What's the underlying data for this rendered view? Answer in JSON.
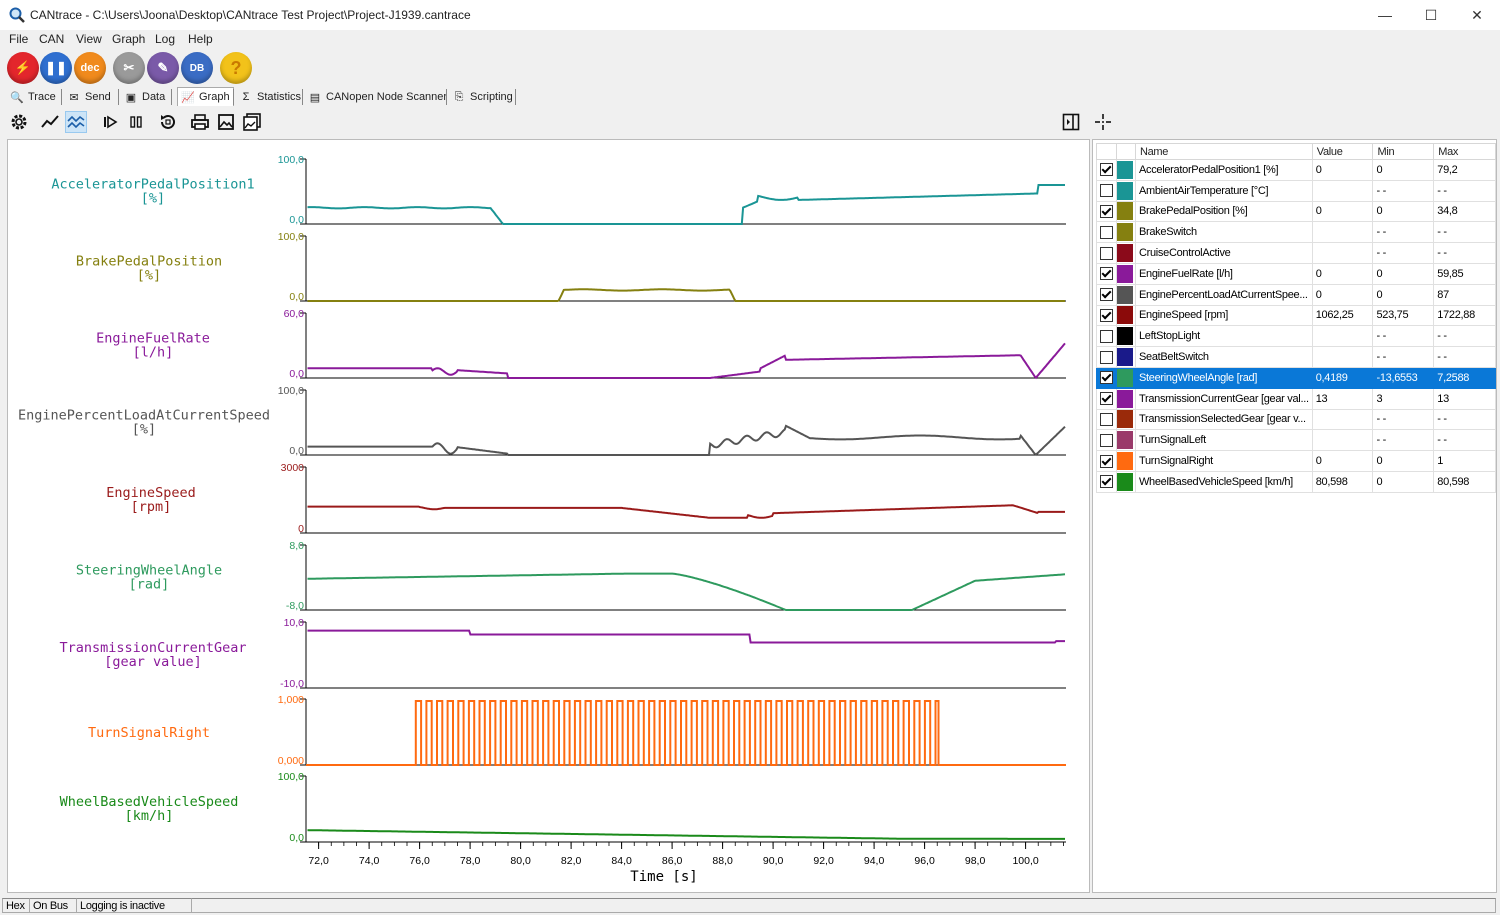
{
  "window": {
    "title": "CANtrace - C:\\Users\\Joona\\Desktop\\CANtrace Test Project\\Project-J1939.cantrace",
    "minimize": "—",
    "maximize": "☐",
    "close": "✕"
  },
  "menu": [
    "File",
    "CAN",
    "View",
    "Graph",
    "Log",
    "Help"
  ],
  "toolbar_buttons": [
    {
      "name": "connect",
      "color": "#e3262c",
      "glyph": "⚡"
    },
    {
      "name": "pause",
      "color": "#2f6fd0",
      "glyph": "❚❚"
    },
    {
      "name": "dec",
      "color": "#f08a1c",
      "glyph": "dec"
    },
    {
      "name": "tools",
      "color": "#9a9a9a",
      "glyph": "✂"
    },
    {
      "name": "edit",
      "color": "#7a5aa8",
      "glyph": "✎"
    },
    {
      "name": "database",
      "color": "#3a6cc4",
      "glyph": "DB"
    },
    {
      "name": "help",
      "color": "#f2c21a",
      "glyph": "?"
    }
  ],
  "tabs": [
    {
      "label": "Trace",
      "icon": "🔍"
    },
    {
      "label": "Send",
      "icon": "✉"
    },
    {
      "label": "Data",
      "icon": "▣"
    },
    {
      "label": "Graph",
      "icon": "📈"
    },
    {
      "label": "Statistics",
      "icon": "Σ"
    },
    {
      "label": "CANopen Node Scanner",
      "icon": "▤"
    },
    {
      "label": "Scripting",
      "icon": "⎘"
    }
  ],
  "graph": {
    "xlabel": "Time [s]",
    "x_range": [
      71.5,
      101.6
    ],
    "x_ticks": [
      "72,0",
      "74,0",
      "76,0",
      "78,0",
      "80,0",
      "82,0",
      "84,0",
      "86,0",
      "88,0",
      "90,0",
      "92,0",
      "94,0",
      "96,0",
      "98,0",
      "100,0"
    ],
    "channels": [
      {
        "label": "AcceleratorPedalPosition1",
        "unit": "[%]",
        "color": "#1a9595",
        "ymax": "100,0",
        "ymin": "0,0"
      },
      {
        "label": "BrakePedalPosition",
        "unit": "[%]",
        "color": "#858010",
        "ymax": "100,0",
        "ymin": "0,0"
      },
      {
        "label": "EngineFuelRate",
        "unit": "[l/h]",
        "color": "#8a1a9a",
        "ymax": "60,0",
        "ymin": "0,0"
      },
      {
        "label": "EnginePercentLoadAtCurrentSpeed",
        "unit": "[%]",
        "color": "#555555",
        "ymax": "100,0",
        "ymin": "0,0"
      },
      {
        "label": "EngineSpeed",
        "unit": "[rpm]",
        "color": "#9a1a1a",
        "ymax": "3000",
        "ymin": "0"
      },
      {
        "label": "SteeringWheelAngle",
        "unit": "[rad]",
        "color": "#2e9a5e",
        "ymax": "8,0",
        "ymin": "-8,0"
      },
      {
        "label": "TransmissionCurrentGear",
        "unit": "[gear value]",
        "color": "#8a1a9a",
        "ymax": "10,0",
        "ymin": "-10,0"
      },
      {
        "label": "TurnSignalRight",
        "unit": "",
        "color": "#ff6a10",
        "ymax": "1,000",
        "ymin": "0,000"
      },
      {
        "label": "WheelBasedVehicleSpeed",
        "unit": "[km/h]",
        "color": "#1a8a1a",
        "ymax": "100,0",
        "ymin": "0,0"
      }
    ]
  },
  "signal_table": {
    "headers": {
      "name": "Name",
      "value": "Value",
      "min": "Min",
      "max": "Max"
    },
    "rows": [
      {
        "checked": true,
        "color": "#1a9595",
        "name": "AcceleratorPedalPosition1 [%]",
        "value": "0",
        "min": "0",
        "max": "79,2"
      },
      {
        "checked": false,
        "color": "#1a9595",
        "name": "AmbientAirTemperature [°C]",
        "value": "",
        "min": "- -",
        "max": "- -"
      },
      {
        "checked": true,
        "color": "#858010",
        "name": "BrakePedalPosition [%]",
        "value": "0",
        "min": "0",
        "max": "34,8"
      },
      {
        "checked": false,
        "color": "#858010",
        "name": "BrakeSwitch",
        "value": "",
        "min": "- -",
        "max": "- -"
      },
      {
        "checked": false,
        "color": "#8b0a1a",
        "name": "CruiseControlActive",
        "value": "",
        "min": "- -",
        "max": "- -"
      },
      {
        "checked": true,
        "color": "#8a1a9a",
        "name": "EngineFuelRate [l/h]",
        "value": "0",
        "min": "0",
        "max": "59,85"
      },
      {
        "checked": true,
        "color": "#555555",
        "name": "EnginePercentLoadAtCurrentSpee...",
        "value": "0",
        "min": "0",
        "max": "87"
      },
      {
        "checked": true,
        "color": "#8b0a0a",
        "name": "EngineSpeed [rpm]",
        "value": "1062,25",
        "min": "523,75",
        "max": "1722,88"
      },
      {
        "checked": false,
        "color": "#000000",
        "name": "LeftStopLight",
        "value": "",
        "min": "- -",
        "max": "- -"
      },
      {
        "checked": false,
        "color": "#1a1a8a",
        "name": "SeatBeltSwitch",
        "value": "",
        "min": "- -",
        "max": "- -"
      },
      {
        "checked": true,
        "color": "#2e9a5e",
        "name": "SteeringWheelAngle [rad]",
        "value": "0,4189",
        "min": "-13,6553",
        "max": "7,2588",
        "selected": true
      },
      {
        "checked": true,
        "color": "#8a1a9a",
        "name": "TransmissionCurrentGear [gear val...",
        "value": "13",
        "min": "3",
        "max": "13"
      },
      {
        "checked": false,
        "color": "#9a2a0a",
        "name": "TransmissionSelectedGear [gear v...",
        "value": "",
        "min": "- -",
        "max": "- -"
      },
      {
        "checked": false,
        "color": "#9a3a6a",
        "name": "TurnSignalLeft",
        "value": "",
        "min": "- -",
        "max": "- -"
      },
      {
        "checked": true,
        "color": "#ff6a10",
        "name": "TurnSignalRight",
        "value": "0",
        "min": "0",
        "max": "1"
      },
      {
        "checked": true,
        "color": "#1a8a1a",
        "name": "WheelBasedVehicleSpeed [km/h]",
        "value": "80,598",
        "min": "0",
        "max": "80,598"
      }
    ]
  },
  "status": [
    "Hex",
    "On Bus",
    "Logging is inactive"
  ]
}
